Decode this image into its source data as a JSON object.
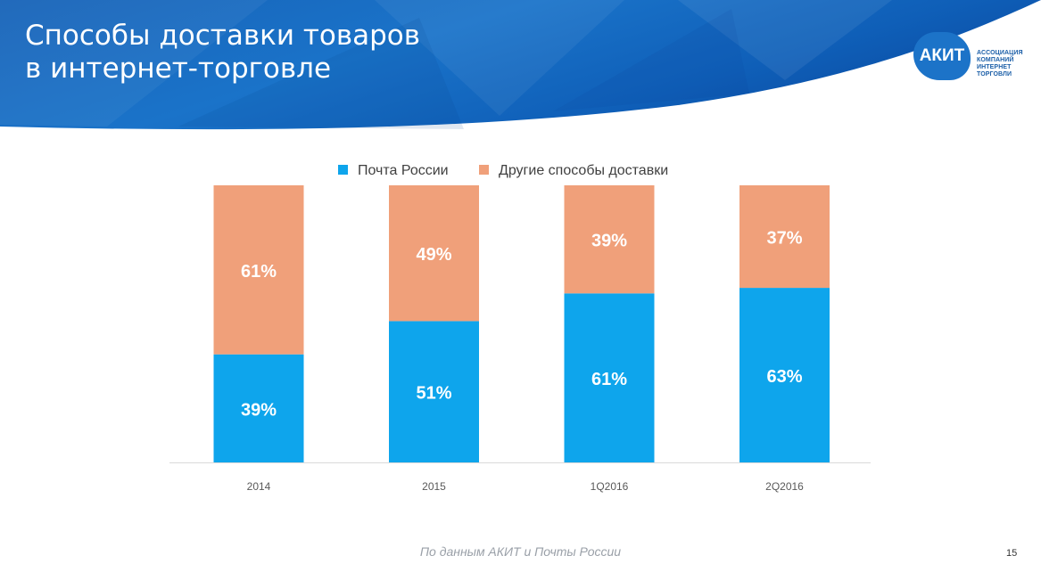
{
  "slide": {
    "title_line1": "Способы доставки товаров",
    "title_line2": "в интернет-торговле",
    "source": "По данным АКИТ и Почты России",
    "page_number": "15"
  },
  "logo": {
    "badge": "АКИТ",
    "line1": "АССОЦИАЦИЯ",
    "line2": "КОМПАНИЙ",
    "line3": "ИНТЕРНЕТ",
    "line4": "ТОРГОВЛИ"
  },
  "colors": {
    "header_blue": "#1565c0",
    "post_russia": "#0ea5ec",
    "other_delivery": "#f0a07a"
  },
  "chart_data": {
    "type": "bar",
    "stacked": true,
    "categories": [
      "2014",
      "2015",
      "1Q2016",
      "2Q2016"
    ],
    "series": [
      {
        "name": "Почта России",
        "values": [
          39,
          51,
          61,
          63
        ],
        "labels": [
          "39%",
          "51%",
          "61%",
          "63%"
        ],
        "color": "#0ea5ec"
      },
      {
        "name": "Другие способы доставки",
        "values": [
          61,
          49,
          39,
          37
        ],
        "labels": [
          "61%",
          "49%",
          "39%",
          "37%"
        ],
        "color": "#f0a07a"
      }
    ],
    "ylim": [
      0,
      100
    ],
    "unit": "%",
    "legend": "top",
    "grid": false
  }
}
